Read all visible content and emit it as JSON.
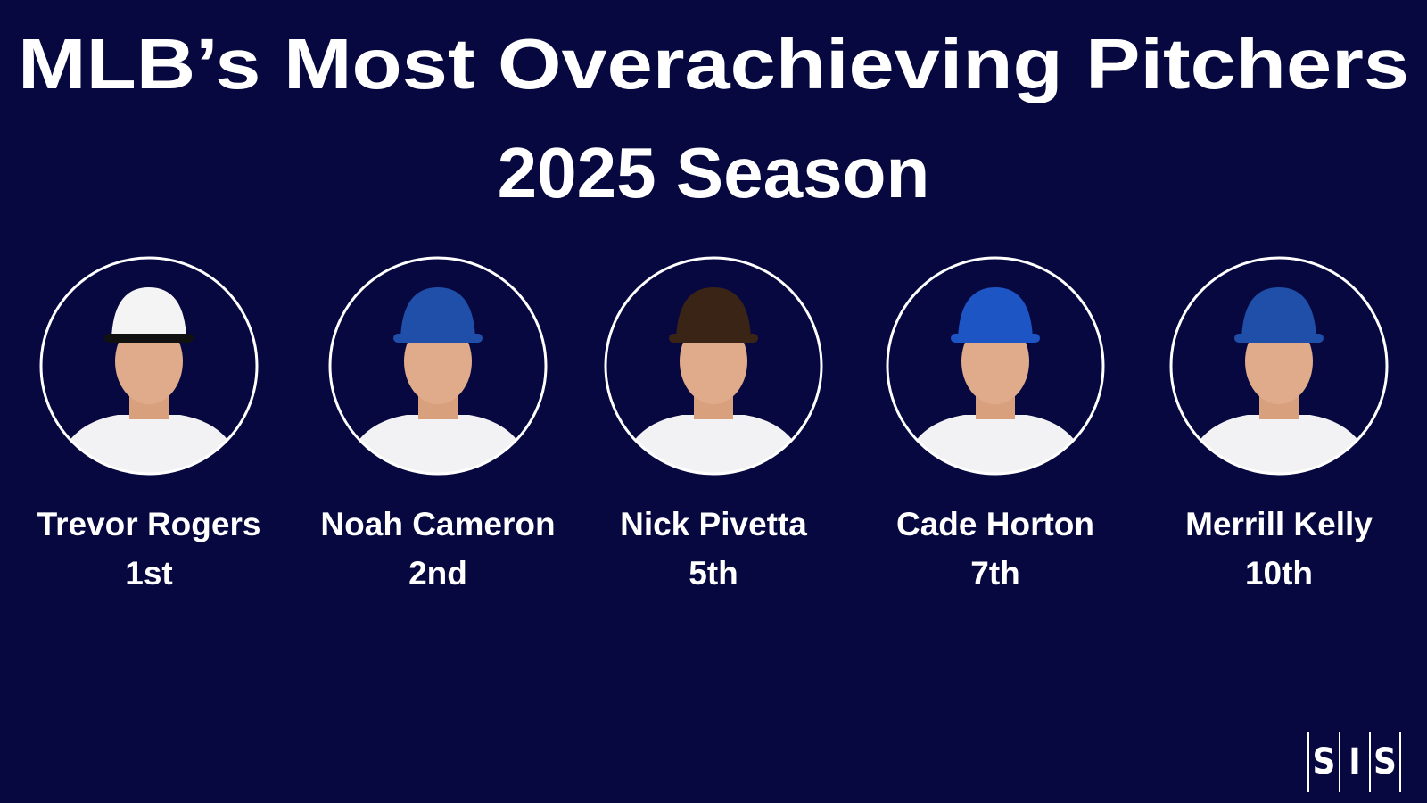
{
  "header": {
    "title": [
      "MLB’s Most Overachieving Pitchers",
      "2025 Season"
    ]
  },
  "players": [
    {
      "name": "Trevor Rogers",
      "rank": "1st"
    },
    {
      "name": "Noah Cameron",
      "rank": "2nd"
    },
    {
      "name": "Nick Pivetta",
      "rank": "5th"
    },
    {
      "name": "Cade Horton",
      "rank": "7th"
    },
    {
      "name": "Merrill Kelly",
      "rank": "10th"
    }
  ],
  "logo": [
    "S",
    "I",
    "S"
  ]
}
